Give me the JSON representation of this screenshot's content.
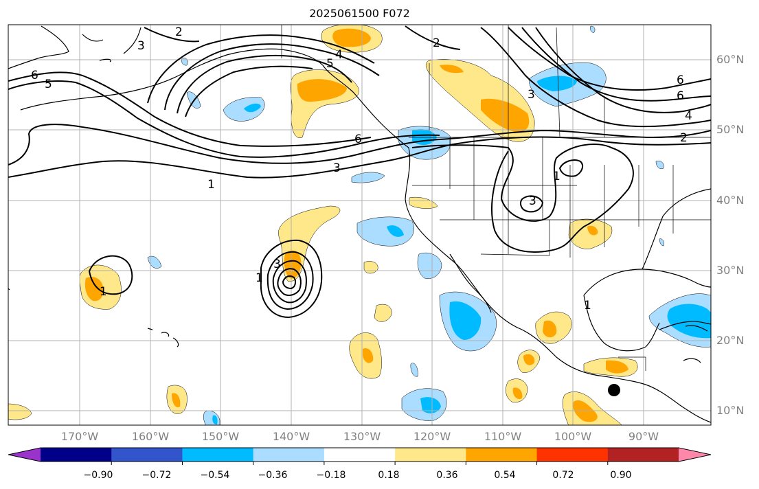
{
  "title": "2025061500 F072",
  "lat_labels": [
    "60°N",
    "50°N",
    "40°N",
    "30°N",
    "20°N",
    "10°N"
  ],
  "lon_labels": [
    "170°W",
    "160°W",
    "150°W",
    "140°W",
    "130°W",
    "120°W",
    "110°W",
    "100°W",
    "90°W"
  ],
  "colorbar": {
    "colors": [
      "#9933cc",
      "#000088",
      "#3355cc",
      "#00bbff",
      "#aaddff",
      "#ffffff",
      "#ffe88a",
      "#ffa500",
      "#ff3300",
      "#b22222",
      "#ff88aa"
    ],
    "tick_labels": [
      "−0.90",
      "−0.72",
      "−0.54",
      "−0.36",
      "−0.18",
      "0.18",
      "0.36",
      "0.54",
      "0.72",
      "0.90"
    ]
  },
  "contour_labels": [
    "6",
    "5",
    "3",
    "2",
    "4",
    "5",
    "6",
    "3",
    "1",
    "2",
    "6",
    "3",
    "6",
    "4",
    "2",
    "1",
    "3",
    "1",
    "1",
    "3",
    "1"
  ],
  "marker": {
    "name": "black-dot",
    "lon": -93.5,
    "lat": 12.7
  }
}
